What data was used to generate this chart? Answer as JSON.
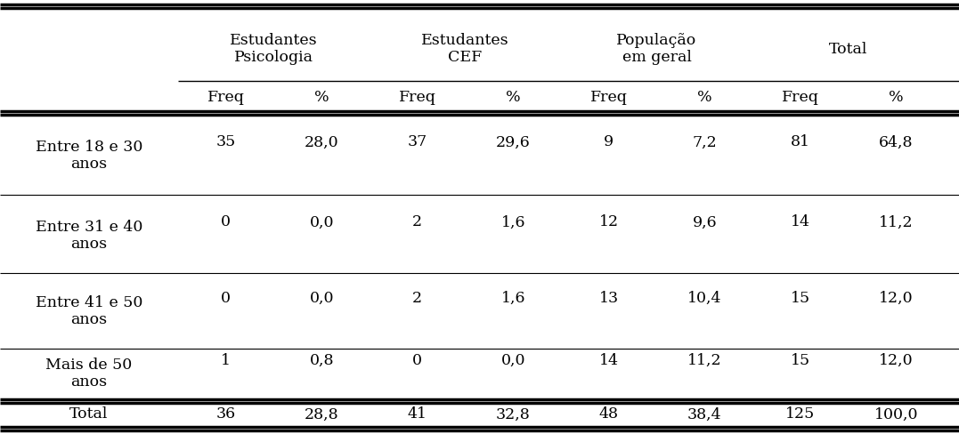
{
  "col_headers_top": [
    "Estudantes\nPsicologia",
    "Estudantes\nCEF",
    "População\nem geral",
    "Total"
  ],
  "col_headers_sub": [
    "Freq",
    "%",
    "Freq",
    "%",
    "Freq",
    "%",
    "Freq",
    "%"
  ],
  "row_labels": [
    "Entre 18 e 30\nanos",
    "Entre 31 e 40\nanos",
    "Entre 41 e 50\nanos",
    "Mais de 50\nanos"
  ],
  "data": [
    [
      "35",
      "28,0",
      "37",
      "29,6",
      "9",
      "7,2",
      "81",
      "64,8"
    ],
    [
      "0",
      "0,0",
      "2",
      "1,6",
      "12",
      "9,6",
      "14",
      "11,2"
    ],
    [
      "0",
      "0,0",
      "2",
      "1,6",
      "13",
      "10,4",
      "15",
      "12,0"
    ],
    [
      "1",
      "0,8",
      "0",
      "0,0",
      "14",
      "11,2",
      "15",
      "12,0"
    ]
  ],
  "total_label": "Total",
  "total_data": [
    "36",
    "28,8",
    "41",
    "32,8",
    "48",
    "38,4",
    "125",
    "100,0"
  ],
  "bg_color": "#ffffff",
  "text_color": "#000000",
  "font_size": 12.5,
  "header_font_size": 12.5
}
